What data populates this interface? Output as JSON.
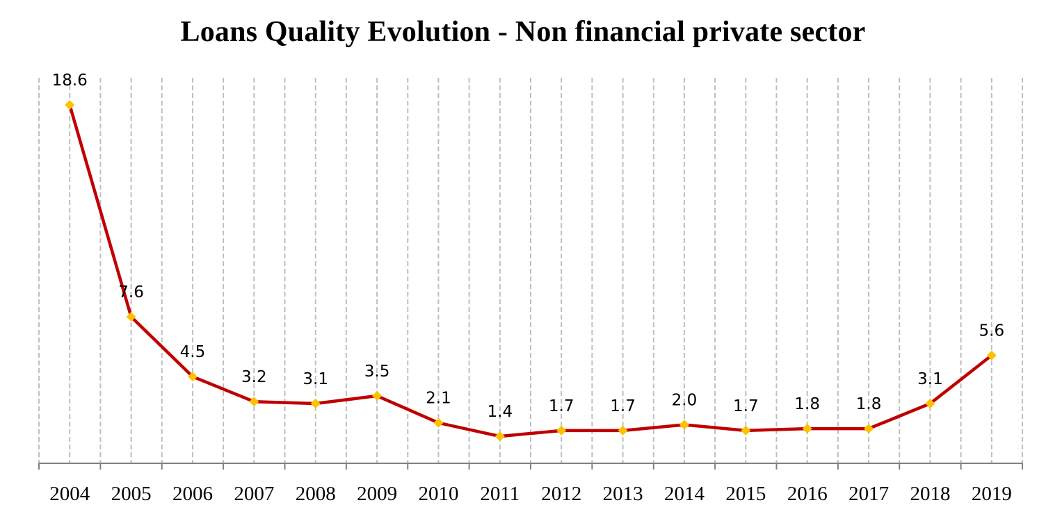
{
  "chart_data": {
    "type": "line",
    "title": "Loans Quality Evolution - Non financial private sector",
    "xlabel": "",
    "ylabel": "",
    "categories": [
      "2004",
      "2005",
      "2006",
      "2007",
      "2008",
      "2009",
      "2010",
      "2011",
      "2012",
      "2013",
      "2014",
      "2015",
      "2016",
      "2017",
      "2018",
      "2019"
    ],
    "series": [
      {
        "name": "Loans Quality",
        "values": [
          18.6,
          7.6,
          4.5,
          3.2,
          3.1,
          3.5,
          2.1,
          1.4,
          1.7,
          1.7,
          2.0,
          1.7,
          1.8,
          1.8,
          3.1,
          5.6
        ],
        "labels": [
          "18.6",
          "7.6",
          "4.5",
          "3.2",
          "3.1",
          "3.5",
          "2.1",
          "1.4",
          "1.7",
          "1.7",
          "2.0",
          "1.7",
          "1.8",
          "1.8",
          "3.1",
          "5.6"
        ],
        "line_color": "#C00000",
        "marker_color": "#FFC000",
        "marker": "diamond"
      }
    ],
    "ylim": [
      0,
      19
    ],
    "y_axis_visible": false,
    "grid": "vertical dashed",
    "grid_color": "#BFBFBF",
    "axis_color": "#808080",
    "legend": "none"
  }
}
